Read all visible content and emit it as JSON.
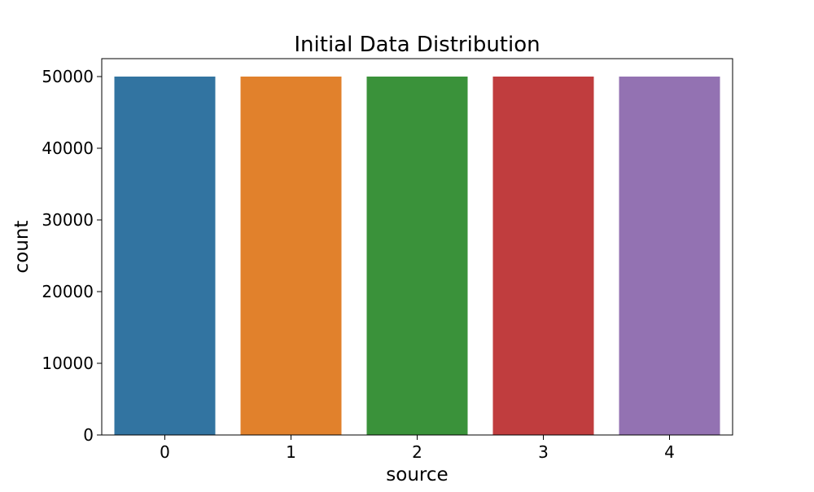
{
  "chart_data": {
    "type": "bar",
    "title": "Initial Data Distribution",
    "xlabel": "source",
    "ylabel": "count",
    "categories": [
      "0",
      "1",
      "2",
      "3",
      "4"
    ],
    "values": [
      50000,
      50000,
      50000,
      50000,
      50000
    ],
    "colors": [
      "#3274a1",
      "#e1812c",
      "#3a923a",
      "#c03d3e",
      "#9372b2"
    ],
    "ylim": [
      0,
      52500
    ],
    "yticks": [
      0,
      10000,
      20000,
      30000,
      40000,
      50000
    ],
    "grid": false,
    "legend": "none"
  }
}
